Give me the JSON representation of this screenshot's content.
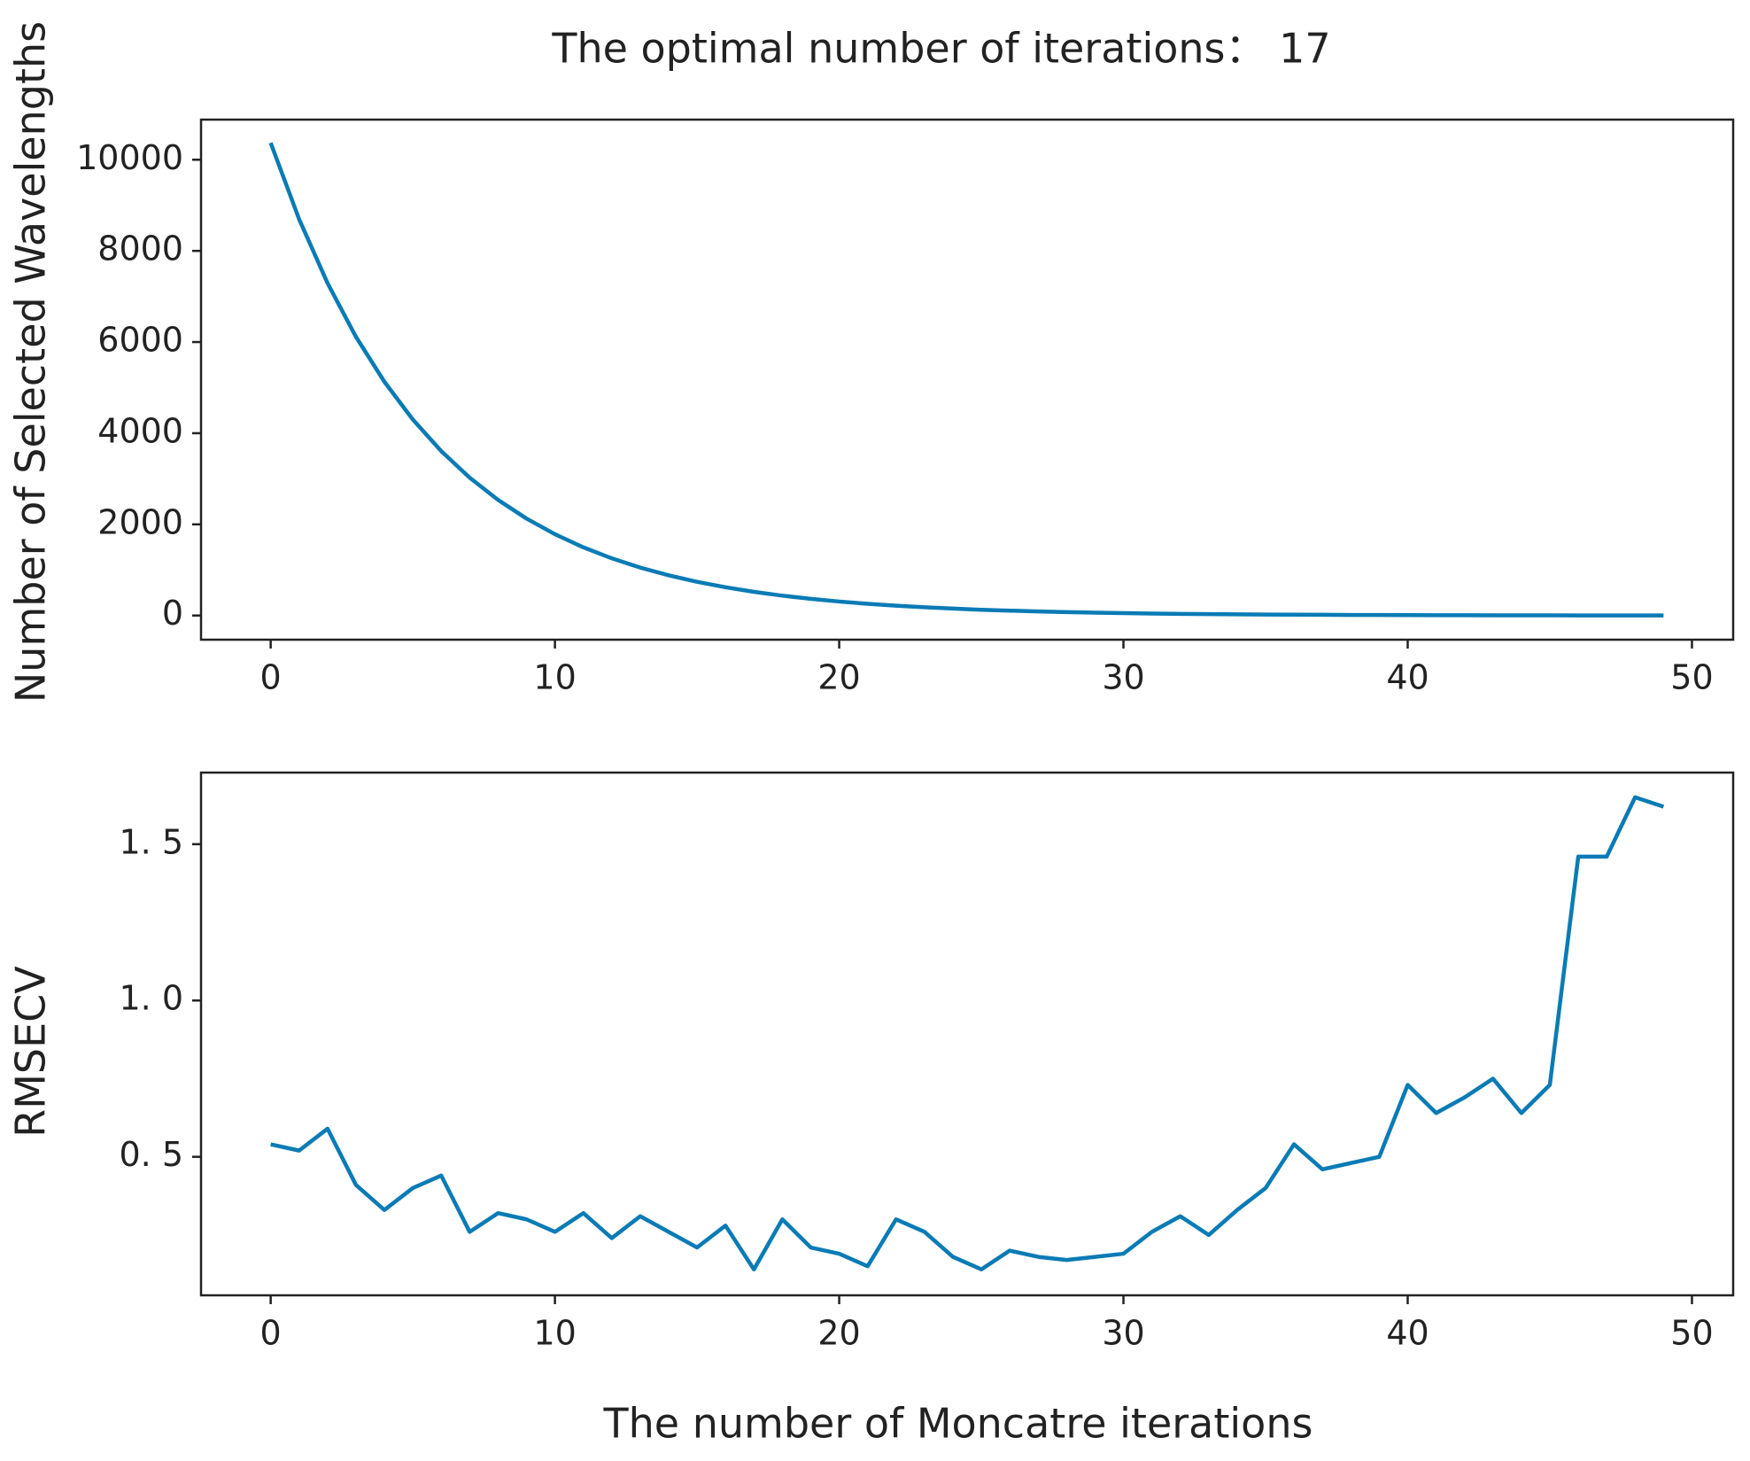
{
  "chart_data": [
    {
      "type": "line",
      "title": "The optimal number of iterations： 17",
      "y_label": "Number of Selected Wavelengths",
      "x": [
        0,
        1,
        2,
        3,
        4,
        5,
        6,
        7,
        8,
        9,
        10,
        11,
        12,
        13,
        14,
        15,
        16,
        17,
        18,
        19,
        20,
        21,
        22,
        23,
        24,
        25,
        26,
        27,
        28,
        29,
        30,
        31,
        32,
        33,
        34,
        35,
        36,
        37,
        38,
        39,
        40,
        41,
        42,
        43,
        44,
        45,
        46,
        47,
        48,
        49
      ],
      "values": [
        10370,
        8696,
        7292,
        6115,
        5129,
        4301,
        3607,
        3025,
        2537,
        2127,
        1784,
        1496,
        1255,
        1052,
        882,
        740,
        621,
        520,
        436,
        366,
        307,
        257,
        216,
        181,
        152,
        127,
        107,
        90,
        75,
        63,
        53,
        44,
        37,
        31,
        26,
        22,
        18,
        16,
        13,
        11,
        9,
        8,
        7,
        5,
        5,
        4,
        3,
        3,
        2,
        2
      ],
      "color": "#0a7bb5",
      "xlim": [
        -2.45,
        51.45
      ],
      "xticks": [
        0,
        10,
        20,
        30,
        40,
        50
      ],
      "ylim": [
        -530,
        10880
      ],
      "yticks": [
        0,
        2000,
        4000,
        6000,
        8000,
        10000
      ]
    },
    {
      "type": "line",
      "y_label": "RMSECV",
      "x_label": "The number of Moncatre iterations",
      "x": [
        0,
        1,
        2,
        3,
        4,
        5,
        6,
        7,
        8,
        9,
        10,
        11,
        12,
        13,
        14,
        15,
        16,
        17,
        18,
        19,
        20,
        21,
        22,
        23,
        24,
        25,
        26,
        27,
        28,
        29,
        30,
        31,
        32,
        33,
        34,
        35,
        36,
        37,
        38,
        39,
        40,
        41,
        42,
        43,
        44,
        45,
        46,
        47,
        48,
        49
      ],
      "values": [
        0.54,
        0.52,
        0.59,
        0.41,
        0.33,
        0.4,
        0.44,
        0.26,
        0.32,
        0.3,
        0.26,
        0.32,
        0.24,
        0.31,
        0.26,
        0.21,
        0.28,
        0.14,
        0.3,
        0.21,
        0.19,
        0.15,
        0.3,
        0.26,
        0.18,
        0.14,
        0.2,
        0.18,
        0.17,
        0.18,
        0.19,
        0.26,
        0.31,
        0.25,
        0.33,
        0.4,
        0.54,
        0.46,
        0.48,
        0.5,
        0.73,
        0.64,
        0.69,
        0.75,
        0.64,
        0.73,
        1.46,
        1.46,
        1.65,
        1.62
      ],
      "color": "#0a7bb5",
      "xlim": [
        -2.45,
        51.45
      ],
      "xticks": [
        0,
        10,
        20,
        30,
        40,
        50
      ],
      "ylim": [
        0.057,
        1.729
      ],
      "yticks": [
        {
          "value": 0.5,
          "label": "0. 5"
        },
        {
          "value": 1.0,
          "label": "1. 0"
        },
        {
          "value": 1.5,
          "label": "1. 5"
        }
      ]
    }
  ]
}
